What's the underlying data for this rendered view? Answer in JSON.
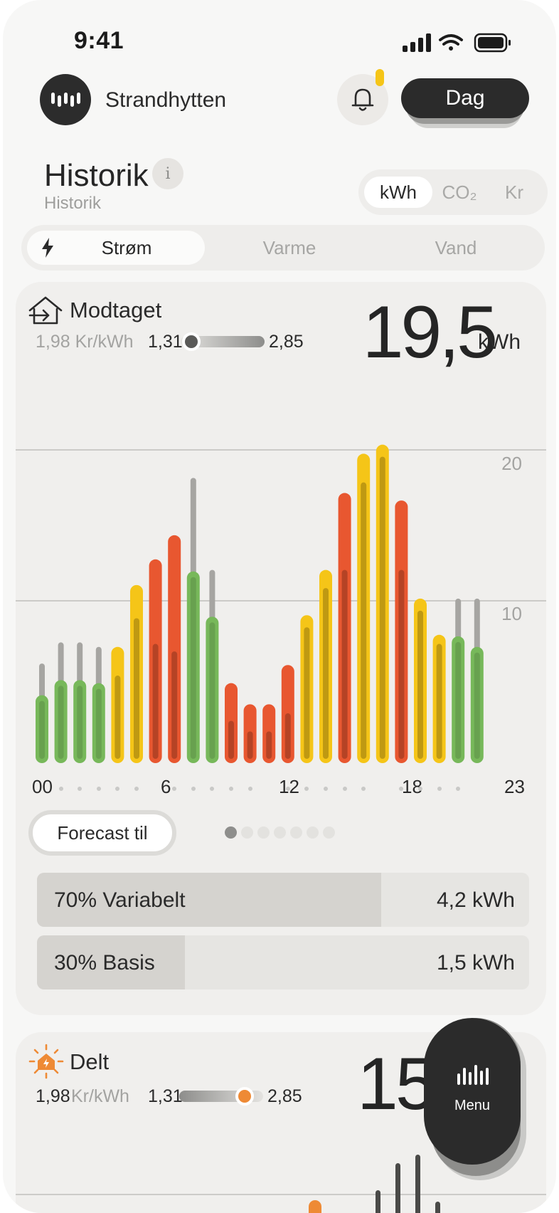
{
  "status_bar": {
    "time": "9:41"
  },
  "header": {
    "home_name": "Strandhytten",
    "period_button": "Dag"
  },
  "section": {
    "title": "Historik",
    "subtitle": "Historik",
    "info": "i"
  },
  "unit_tabs": [
    {
      "label": "kWh",
      "active": true
    },
    {
      "label": "CO₂",
      "active": false
    },
    {
      "label": "Kr",
      "active": false
    }
  ],
  "energy_tabs": [
    {
      "label": "Strøm",
      "active": true
    },
    {
      "label": "Varme",
      "active": false
    },
    {
      "label": "Vand",
      "active": false
    }
  ],
  "card_received": {
    "title": "Modtaget",
    "price": "1,98 Kr/kWh",
    "range_min": "1,31",
    "range_max": "2,85",
    "price_level": 0.13,
    "total": "19,5",
    "total_unit": "kWh",
    "forecast_button": "Forecast til",
    "pages": 7,
    "active_page": 0,
    "breakdown": [
      {
        "label": "70% Variabelt",
        "value": "4,2 kWh",
        "share": 0.7
      },
      {
        "label": "30% Basis",
        "value": "1,5 kWh",
        "share": 0.3
      }
    ]
  },
  "chart_data": {
    "type": "bar",
    "categories": [
      "00",
      "01",
      "02",
      "03",
      "04",
      "05",
      "06",
      "07",
      "08",
      "09",
      "10",
      "11",
      "12",
      "13",
      "14",
      "15",
      "16",
      "17",
      "18",
      "19",
      "20",
      "21",
      "22",
      "23"
    ],
    "x_tick_labels": [
      "00",
      "6",
      "12",
      "18",
      "23"
    ],
    "y_ticks": [
      "10",
      "20"
    ],
    "ylim": [
      0,
      21.5
    ],
    "grid": true,
    "series": [
      {
        "values": [
          4.5,
          5.5,
          5.5,
          5.3,
          7.7,
          11.8,
          13.5,
          15.1,
          12.7,
          9.7,
          5.3,
          3.9,
          3.9,
          6.5,
          9.8,
          12.8,
          17.9,
          20.5,
          21.1,
          17.4,
          10.9,
          8.5,
          8.4,
          7.7
        ]
      },
      {
        "values": [
          6.6,
          8.0,
          8.0,
          7.7,
          5.8,
          9.6,
          7.9,
          7.4,
          18.9,
          12.8,
          2.8,
          2.1,
          2.1,
          3.3,
          9.0,
          11.6,
          12.8,
          18.6,
          20.3,
          12.8,
          10.1,
          7.9,
          10.9,
          10.9
        ]
      }
    ],
    "bar_colors": [
      "#77b85a",
      "#77b85a",
      "#77b85a",
      "#77b85a",
      "#f5c518",
      "#f5c518",
      "#e85730",
      "#e85730",
      "#77b85a",
      "#77b85a",
      "#e85730",
      "#e85730",
      "#e85730",
      "#e85730",
      "#f5c518",
      "#f5c518",
      "#e85730",
      "#f5c518",
      "#f5c518",
      "#e85730",
      "#f5c518",
      "#f5c518",
      "#77b85a",
      "#77b85a"
    ]
  },
  "card_shared": {
    "title": "Delt",
    "price_num": "1,98",
    "price_unit": "Kr/kWh",
    "range_min": "1,31",
    "range_max": "2,85",
    "price_level": 0.78,
    "total": "15,"
  },
  "menu_button": {
    "label": "Menu"
  },
  "colors": {
    "green": "#77b85a",
    "yellow": "#f5c518",
    "red": "#e85730",
    "orange": "#ee8a35",
    "dark": "#2b2b2b"
  }
}
